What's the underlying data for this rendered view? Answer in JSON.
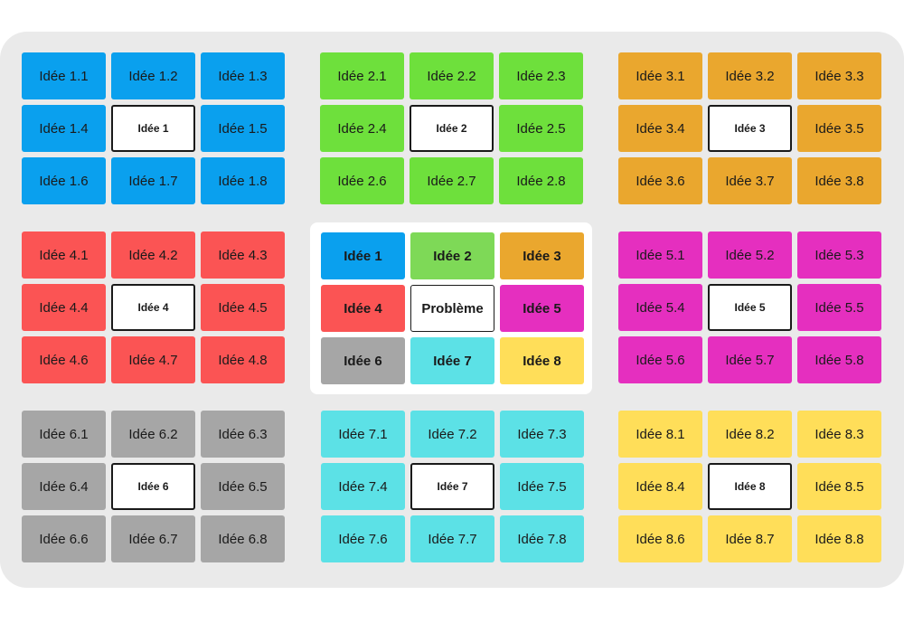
{
  "center": {
    "problem": "Problème",
    "ideas": [
      "Idée 1",
      "Idée 2",
      "Idée 3",
      "Idée 4",
      "Idée 5",
      "Idée 6",
      "Idée 7",
      "Idée 8"
    ],
    "colors": [
      "#0aa0ee",
      "#7ed957",
      "#eaa72e",
      "#fb5454",
      "#e52fbf",
      "#a6a6a6",
      "#5ce1e6",
      "#ffde59"
    ]
  },
  "groups": [
    {
      "center_label": "Idée 1",
      "color": "#0aa0ee",
      "ideas": [
        "Idée 1.1",
        "Idée 1.2",
        "Idée 1.3",
        "Idée 1.4",
        "Idée 1.5",
        "Idée 1.6",
        "Idée 1.7",
        "Idée 1.8"
      ]
    },
    {
      "center_label": "Idée 2",
      "color": "#6ee03c",
      "ideas": [
        "Idée 2.1",
        "Idée 2.2",
        "Idée 2.3",
        "Idée 2.4",
        "Idée 2.5",
        "Idée 2.6",
        "Idée 2.7",
        "Idée 2.8"
      ]
    },
    {
      "center_label": "Idée 3",
      "color": "#eaa72e",
      "ideas": [
        "Idée 3.1",
        "Idée 3.2",
        "Idée 3.3",
        "Idée 3.4",
        "Idée 3.5",
        "Idée 3.6",
        "Idée 3.7",
        "Idée 3.8"
      ]
    },
    {
      "center_label": "Idée 4",
      "color": "#fb5454",
      "ideas": [
        "Idée 4.1",
        "Idée 4.2",
        "Idée 4.3",
        "Idée 4.4",
        "Idée 4.5",
        "Idée 4.6",
        "Idée 4.7",
        "Idée 4.8"
      ]
    },
    {
      "center_label": "Idée 5",
      "color": "#e52fbf",
      "ideas": [
        "Idée 5.1",
        "Idée 5.2",
        "Idée 5.3",
        "Idée 5.4",
        "Idée 5.5",
        "Idée 5.6",
        "Idée 5.7",
        "Idée 5.8"
      ]
    },
    {
      "center_label": "Idée 6",
      "color": "#a6a6a6",
      "ideas": [
        "Idée 6.1",
        "Idée 6.2",
        "Idée 6.3",
        "Idée 6.4",
        "Idée 6.5",
        "Idée 6.6",
        "Idée 6.7",
        "Idée 6.8"
      ]
    },
    {
      "center_label": "Idée 7",
      "color": "#5ce1e6",
      "ideas": [
        "Idée 7.1",
        "Idée 7.2",
        "Idée 7.3",
        "Idée 7.4",
        "Idée 7.5",
        "Idée 7.6",
        "Idée 7.7",
        "Idée 7.8"
      ]
    },
    {
      "center_label": "Idée 8",
      "color": "#ffde59",
      "ideas": [
        "Idée 8.1",
        "Idée 8.2",
        "Idée 8.3",
        "Idée 8.4",
        "Idée 8.5",
        "Idée 8.6",
        "Idée 8.7",
        "Idée 8.8"
      ]
    }
  ]
}
